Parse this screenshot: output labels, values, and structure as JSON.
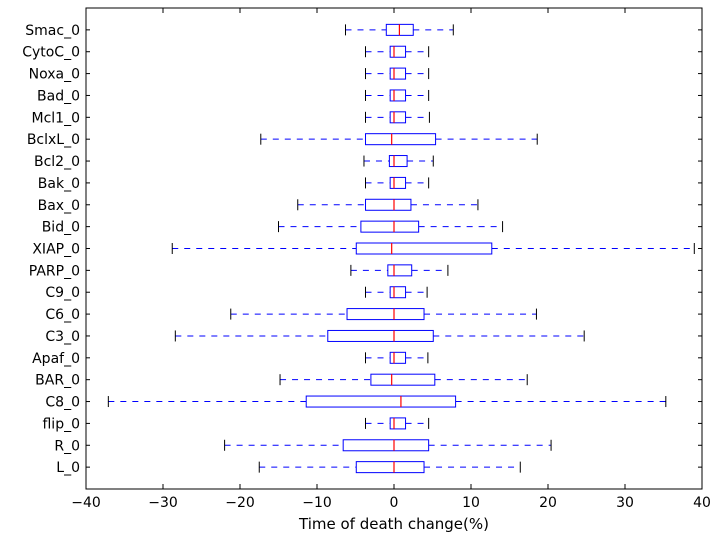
{
  "chart_data": {
    "type": "box",
    "orientation": "horizontal",
    "title": "",
    "xlabel": "Time of death change(%)",
    "ylabel": "",
    "xlim": [
      -40,
      40
    ],
    "xticks": [
      -40,
      -30,
      -20,
      -10,
      0,
      10,
      20,
      30,
      40
    ],
    "grid": false,
    "colors": {
      "box": "#0000ff",
      "median": "#ff0000",
      "axes": "#000000"
    },
    "categories": [
      "Smac_0",
      "CytoC_0",
      "Noxa_0",
      "Bad_0",
      "Mcl1_0",
      "BclxL_0",
      "Bcl2_0",
      "Bak_0",
      "Bax_0",
      "Bid_0",
      "XIAP_0",
      "PARP_0",
      "C9_0",
      "C6_0",
      "C3_0",
      "Apaf_0",
      "BAR_0",
      "C8_0",
      "flip_0",
      "R_0",
      "L_0"
    ],
    "boxes": [
      {
        "label": "Smac_0",
        "whisker_low": -6.3,
        "q1": -1.0,
        "median": 0.7,
        "q3": 2.5,
        "whisker_high": 7.7
      },
      {
        "label": "CytoC_0",
        "whisker_low": -3.7,
        "q1": -0.5,
        "median": 0.0,
        "q3": 1.5,
        "whisker_high": 4.5
      },
      {
        "label": "Noxa_0",
        "whisker_low": -3.7,
        "q1": -0.5,
        "median": 0.0,
        "q3": 1.5,
        "whisker_high": 4.5
      },
      {
        "label": "Bad_0",
        "whisker_low": -3.7,
        "q1": -0.5,
        "median": 0.0,
        "q3": 1.5,
        "whisker_high": 4.5
      },
      {
        "label": "Mcl1_0",
        "whisker_low": -3.7,
        "q1": -0.5,
        "median": 0.0,
        "q3": 1.5,
        "whisker_high": 4.6
      },
      {
        "label": "BclxL_0",
        "whisker_low": -17.3,
        "q1": -3.7,
        "median": -0.3,
        "q3": 5.4,
        "whisker_high": 18.6
      },
      {
        "label": "Bcl2_0",
        "whisker_low": -3.9,
        "q1": -0.6,
        "median": 0.0,
        "q3": 1.7,
        "whisker_high": 5.1
      },
      {
        "label": "Bak_0",
        "whisker_low": -3.7,
        "q1": -0.5,
        "median": 0.0,
        "q3": 1.5,
        "whisker_high": 4.5
      },
      {
        "label": "Bax_0",
        "whisker_low": -12.5,
        "q1": -3.7,
        "median": 0.0,
        "q3": 2.2,
        "whisker_high": 10.9
      },
      {
        "label": "Bid_0",
        "whisker_low": -15.0,
        "q1": -4.3,
        "median": 0.0,
        "q3": 3.2,
        "whisker_high": 14.1
      },
      {
        "label": "XIAP_0",
        "whisker_low": -28.8,
        "q1": -4.9,
        "median": -0.3,
        "q3": 12.7,
        "whisker_high": 39.0
      },
      {
        "label": "PARP_0",
        "whisker_low": -5.6,
        "q1": -0.8,
        "median": 0.0,
        "q3": 2.3,
        "whisker_high": 7.0
      },
      {
        "label": "C9_0",
        "whisker_low": -3.7,
        "q1": -0.5,
        "median": 0.0,
        "q3": 1.5,
        "whisker_high": 4.3
      },
      {
        "label": "C6_0",
        "whisker_low": -21.2,
        "q1": -6.1,
        "median": 0.0,
        "q3": 3.9,
        "whisker_high": 18.5
      },
      {
        "label": "C3_0",
        "whisker_low": -28.4,
        "q1": -8.6,
        "median": 0.0,
        "q3": 5.1,
        "whisker_high": 24.7
      },
      {
        "label": "Apaf_0",
        "whisker_low": -3.7,
        "q1": -0.5,
        "median": 0.0,
        "q3": 1.5,
        "whisker_high": 4.4
      },
      {
        "label": "BAR_0",
        "whisker_low": -14.8,
        "q1": -3.0,
        "median": -0.3,
        "q3": 5.3,
        "whisker_high": 17.3
      },
      {
        "label": "C8_0",
        "whisker_low": -37.1,
        "q1": -11.4,
        "median": 0.9,
        "q3": 8.0,
        "whisker_high": 35.3
      },
      {
        "label": "flip_0",
        "whisker_low": -3.7,
        "q1": -0.5,
        "median": 0.0,
        "q3": 1.5,
        "whisker_high": 4.5
      },
      {
        "label": "R_0",
        "whisker_low": -22.0,
        "q1": -6.6,
        "median": 0.0,
        "q3": 4.5,
        "whisker_high": 20.4
      },
      {
        "label": "L_0",
        "whisker_low": -17.5,
        "q1": -4.9,
        "median": 0.0,
        "q3": 3.9,
        "whisker_high": 16.4
      }
    ]
  }
}
